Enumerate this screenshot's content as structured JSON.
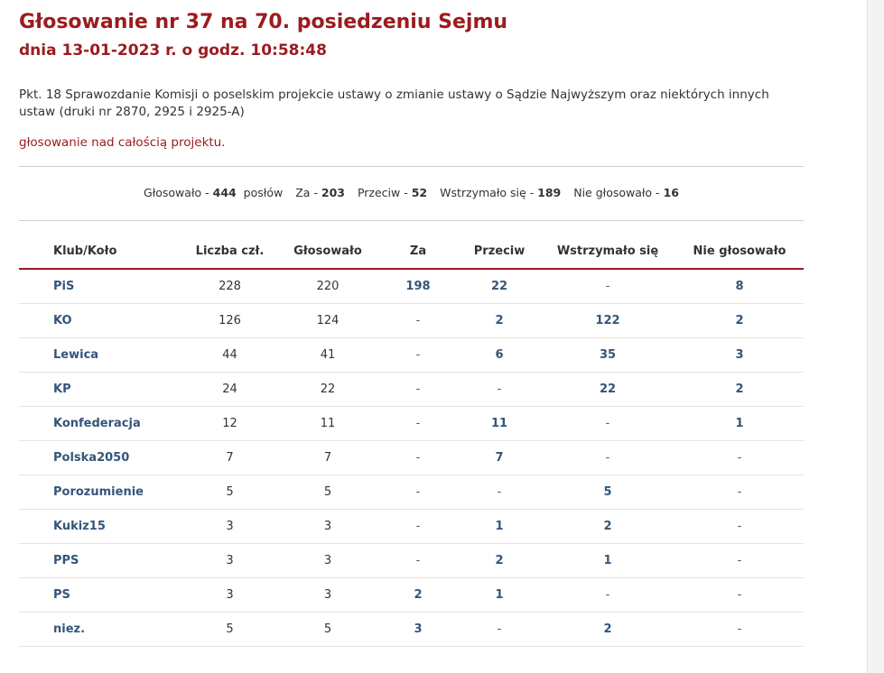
{
  "header": {
    "title": "Głosowanie nr 37 na 70. posiedzeniu Sejmu",
    "date": "dnia 13-01-2023 r. o godz. 10:58:48"
  },
  "description": "Pkt. 18 Sprawozdanie Komisji o poselskim projekcie ustawy o zmianie ustawy o Sądzie Najwyższym oraz niektórych innych ustaw (druki nr 2870, 2925 i 2925-A)",
  "subtitle": "głosowanie nad całością projektu.",
  "summary": {
    "voted_label": "Głosowało -",
    "voted_value": "444",
    "voted_unit": "posłów",
    "for_label": "Za -",
    "for_value": "203",
    "against_label": "Przeciw -",
    "against_value": "52",
    "abstain_label": "Wstrzymało się -",
    "abstain_value": "189",
    "notvoted_label": "Nie głosowało -",
    "notvoted_value": "16"
  },
  "table": {
    "headers": [
      "Klub/Koło",
      "Liczba czł.",
      "Głosowało",
      "Za",
      "Przeciw",
      "Wstrzymało się",
      "Nie głosowało"
    ],
    "rows": [
      [
        "PiS",
        "228",
        "220",
        "198",
        "22",
        "-",
        "8"
      ],
      [
        "KO",
        "126",
        "124",
        "-",
        "2",
        "122",
        "2"
      ],
      [
        "Lewica",
        "44",
        "41",
        "-",
        "6",
        "35",
        "3"
      ],
      [
        "KP",
        "24",
        "22",
        "-",
        "-",
        "22",
        "2"
      ],
      [
        "Konfederacja",
        "12",
        "11",
        "-",
        "11",
        "-",
        "1"
      ],
      [
        "Polska2050",
        "7",
        "7",
        "-",
        "7",
        "-",
        "-"
      ],
      [
        "Porozumienie",
        "5",
        "5",
        "-",
        "-",
        "5",
        "-"
      ],
      [
        "Kukiz15",
        "3",
        "3",
        "-",
        "1",
        "2",
        "-"
      ],
      [
        "PPS",
        "3",
        "3",
        "-",
        "2",
        "1",
        "-"
      ],
      [
        "PS",
        "3",
        "3",
        "2",
        "1",
        "-",
        "-"
      ],
      [
        "niez.",
        "5",
        "5",
        "3",
        "-",
        "2",
        "-"
      ]
    ]
  }
}
